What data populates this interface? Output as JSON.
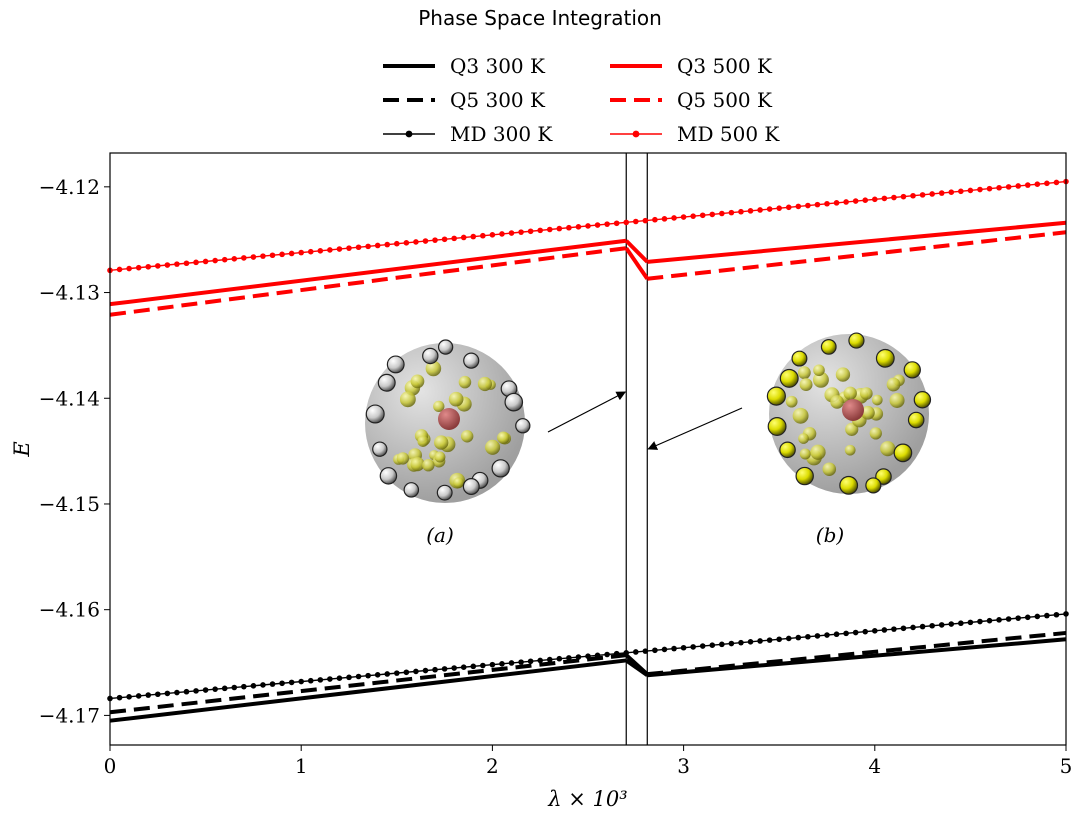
{
  "chart_data": {
    "type": "line",
    "title": "Phase Space Integration",
    "xlabel": "λ × 10³",
    "ylabel": "E",
    "xlim": [
      0,
      5
    ],
    "ylim": [
      -4.1728,
      -4.1168
    ],
    "xticks": [
      "0",
      "1",
      "2",
      "3",
      "4",
      "5"
    ],
    "yticks": [
      {
        "value": -4.12,
        "label": "−4.12"
      },
      {
        "value": -4.13,
        "label": "−4.13"
      },
      {
        "value": -4.14,
        "label": "−4.14"
      },
      {
        "value": -4.15,
        "label": "−4.15"
      },
      {
        "value": -4.16,
        "label": "−4.16"
      },
      {
        "value": -4.17,
        "label": "−4.17"
      }
    ],
    "grid": false,
    "legend_placement": "top-center",
    "vertical_lines": [
      2.7,
      2.81
    ],
    "series": [
      {
        "name": "Q3 300 K",
        "color": "#000000",
        "style": "solid",
        "segments": [
          {
            "x": [
              0,
              2.7
            ],
            "y": [
              -4.1705,
              -4.1648
            ]
          },
          {
            "x": [
              2.81,
              5
            ],
            "y": [
              -4.1662,
              -4.1628
            ]
          }
        ],
        "jump": {
          "x": [
            2.7,
            2.81
          ],
          "y": [
            -4.1648,
            -4.1662
          ]
        }
      },
      {
        "name": "Q5 300 K",
        "color": "#000000",
        "style": "dashed",
        "segments": [
          {
            "x": [
              0,
              2.7
            ],
            "y": [
              -4.1697,
              -4.1643
            ]
          },
          {
            "x": [
              2.81,
              5
            ],
            "y": [
              -4.1661,
              -4.1622
            ]
          }
        ],
        "jump": {
          "x": [
            2.7,
            2.81
          ],
          "y": [
            -4.1643,
            -4.1661
          ]
        }
      },
      {
        "name": "MD 300 K",
        "color": "#000000",
        "style": "marker",
        "x": [
          0,
          5
        ],
        "y": [
          -4.1684,
          -4.1604
        ]
      },
      {
        "name": "Q3 500 K",
        "color": "#ff0000",
        "style": "solid",
        "segments": [
          {
            "x": [
              0,
              2.7
            ],
            "y": [
              -4.1311,
              -4.1251
            ]
          },
          {
            "x": [
              2.81,
              5
            ],
            "y": [
              -4.1271,
              -4.1234
            ]
          }
        ],
        "jump": {
          "x": [
            2.7,
            2.81
          ],
          "y": [
            -4.1251,
            -4.1271
          ]
        }
      },
      {
        "name": "Q5 500 K",
        "color": "#ff0000",
        "style": "dashed",
        "segments": [
          {
            "x": [
              0,
              2.7
            ],
            "y": [
              -4.1321,
              -4.1258
            ]
          },
          {
            "x": [
              2.81,
              5
            ],
            "y": [
              -4.1287,
              -4.1243
            ]
          }
        ],
        "jump": {
          "x": [
            2.7,
            2.81
          ],
          "y": [
            -4.1258,
            -4.1287
          ]
        }
      },
      {
        "name": "MD 500 K",
        "color": "#ff0000",
        "style": "marker",
        "x": [
          0,
          5
        ],
        "y": [
          -4.1279,
          -4.1195
        ]
      }
    ],
    "insets": [
      {
        "label": "(a)",
        "arrow_target_x": 2.7
      },
      {
        "label": "(b)",
        "arrow_target_x": 2.81
      }
    ]
  }
}
